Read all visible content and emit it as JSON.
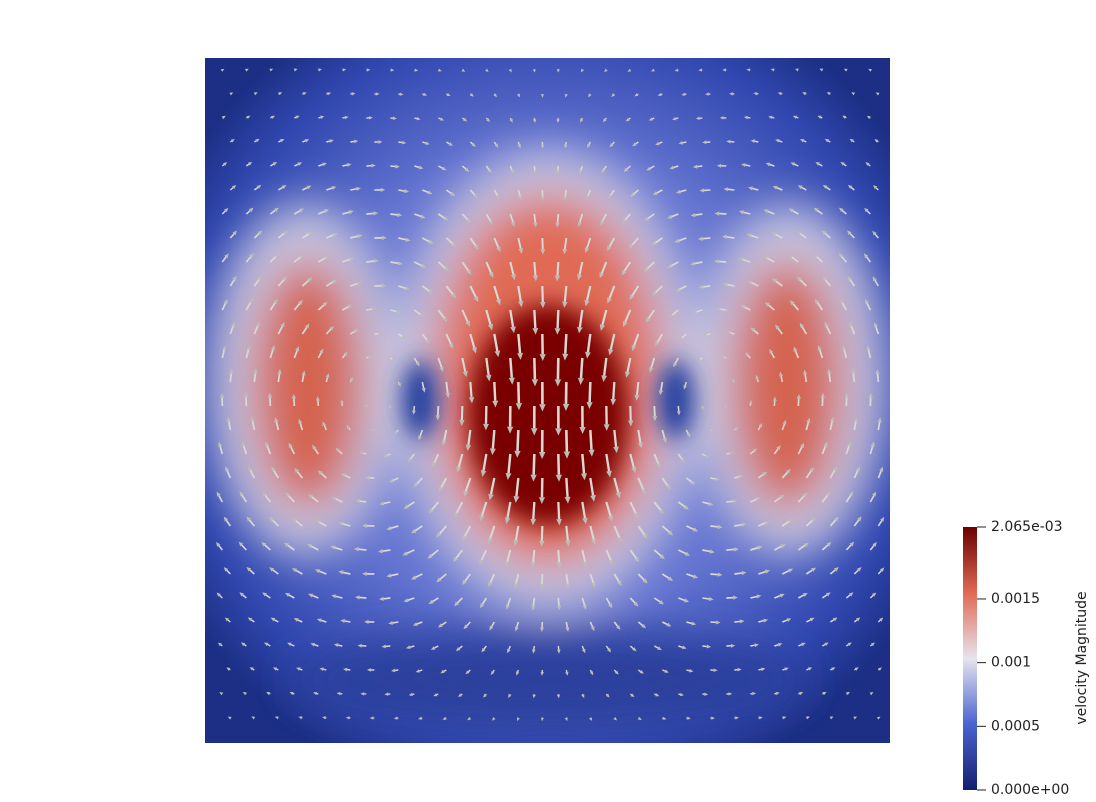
{
  "colorbar": {
    "title": "velocity Magnitude",
    "range": [
      0,
      0.002065
    ],
    "ticks": [
      {
        "value": 0.002065,
        "label": "2.065e-03"
      },
      0.0015,
      0.001,
      0.0005,
      {
        "value": 0,
        "label": "0.000e+00"
      }
    ]
  }
}
